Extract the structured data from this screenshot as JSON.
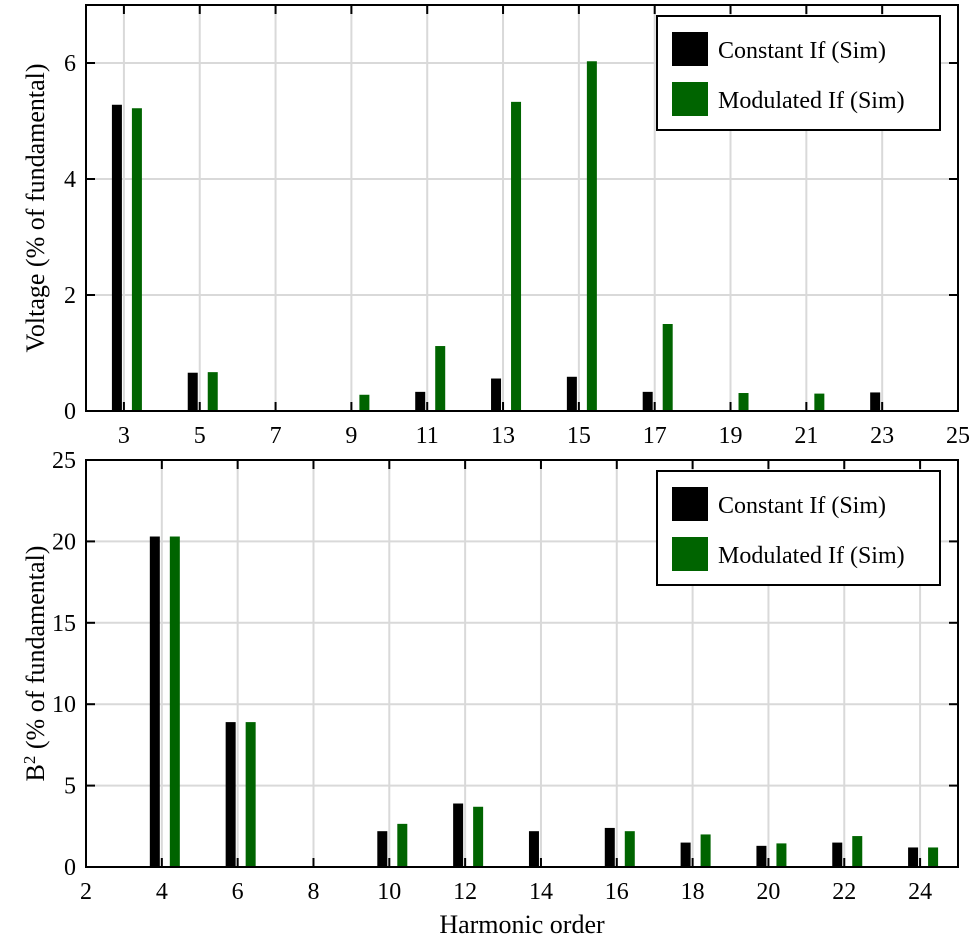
{
  "chart_data": [
    {
      "type": "bar",
      "title": "",
      "xlabel": "",
      "ylabel": "Voltage (% of fundamental)",
      "xlim": [
        2,
        25
      ],
      "ylim": [
        0,
        7
      ],
      "xticks": [
        "3",
        "5",
        "7",
        "9",
        "11",
        "13",
        "15",
        "17",
        "19",
        "21",
        "23",
        "25"
      ],
      "yticks": [
        "0",
        "2",
        "4",
        "6"
      ],
      "grid": true,
      "legend_position": "top-right",
      "categories": [
        3,
        5,
        7,
        9,
        11,
        13,
        15,
        17,
        19,
        21,
        23
      ],
      "series": [
        {
          "name": "Constant If (Sim)",
          "color": "#000000",
          "values": [
            5.28,
            0.66,
            0,
            0,
            0.33,
            0.56,
            0.59,
            0.33,
            0,
            0,
            0.32
          ]
        },
        {
          "name": "Modulated If (Sim)",
          "color": "#006400",
          "values": [
            5.22,
            0.67,
            0,
            0.28,
            1.12,
            5.33,
            6.03,
            1.5,
            0.31,
            0.3,
            0
          ]
        }
      ]
    },
    {
      "type": "bar",
      "title": "",
      "xlabel": "Harmonic order",
      "ylabel": "B² (% of fundamental)",
      "xlim": [
        2,
        25
      ],
      "ylim": [
        0,
        25
      ],
      "xticks": [
        "2",
        "4",
        "6",
        "8",
        "10",
        "12",
        "14",
        "16",
        "18",
        "20",
        "22",
        "24"
      ],
      "yticks": [
        "0",
        "5",
        "10",
        "15",
        "20",
        "25"
      ],
      "grid": true,
      "legend_position": "top-right",
      "categories": [
        4,
        6,
        8,
        10,
        12,
        14,
        16,
        18,
        20,
        22,
        24
      ],
      "series": [
        {
          "name": "Constant If (Sim)",
          "color": "#000000",
          "values": [
            20.3,
            8.9,
            0,
            2.2,
            3.9,
            2.2,
            2.4,
            1.5,
            1.3,
            1.5,
            1.2
          ]
        },
        {
          "name": "Modulated If (Sim)",
          "color": "#006400",
          "values": [
            20.3,
            8.9,
            0,
            2.65,
            3.7,
            0,
            2.2,
            2.0,
            1.45,
            1.9,
            1.2
          ]
        }
      ]
    }
  ]
}
